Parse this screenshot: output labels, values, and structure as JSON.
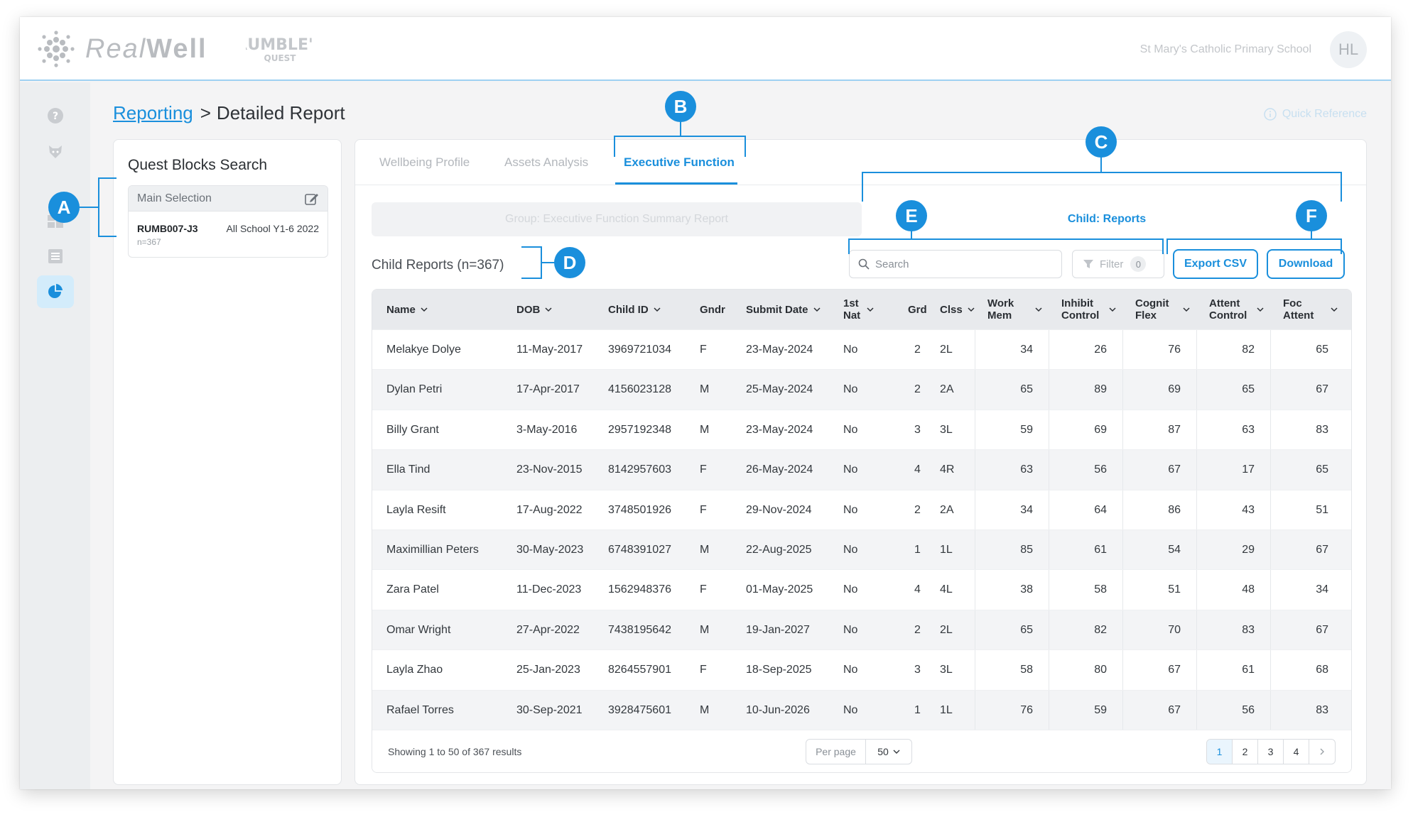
{
  "header": {
    "logo_real": "Real",
    "logo_well": "Well",
    "school": "St Mary's Catholic Primary School",
    "avatar_initials": "HL"
  },
  "breadcrumb": {
    "parent": "Reporting",
    "separator": ">",
    "current": "Detailed Report"
  },
  "quick_reference": "Quick Reference",
  "left_panel": {
    "title": "Quest Blocks Search",
    "selection_header": "Main Selection",
    "code": "RUMB007-J3",
    "scope": "All School Y1-6 2022",
    "count": "n=367"
  },
  "tabs": [
    "Wellbeing Profile",
    "Assets Analysis",
    "Executive Function"
  ],
  "segments": {
    "group": "Group: Executive Function Summary Report",
    "child": "Child: Reports"
  },
  "list_title": "Child Reports (n=367)",
  "search": {
    "placeholder": "Search"
  },
  "filter": {
    "label": "Filter",
    "count": "0"
  },
  "buttons": {
    "export": "Export CSV",
    "download": "Download"
  },
  "table": {
    "columns": [
      "Name",
      "DOB",
      "Child ID",
      "Gndr",
      "Submit Date",
      "1st Nat",
      "Grd",
      "Clss",
      "Work Mem",
      "Inhibit Control",
      "Cognit Flex",
      "Attent Control",
      "Foc Attent"
    ],
    "rows": [
      [
        "Melakye Dolye",
        "11-May-2017",
        "3969721034",
        "F",
        "23-May-2024",
        "No",
        "2",
        "2L",
        "34",
        "26",
        "76",
        "82",
        "65"
      ],
      [
        "Dylan Petri",
        "17-Apr-2017",
        "4156023128",
        "M",
        "25-May-2024",
        "No",
        "2",
        "2A",
        "65",
        "89",
        "69",
        "65",
        "67"
      ],
      [
        "Billy Grant",
        "3-May-2016",
        "2957192348",
        "M",
        "23-May-2024",
        "No",
        "3",
        "3L",
        "59",
        "69",
        "87",
        "63",
        "83"
      ],
      [
        "Ella Tind",
        "23-Nov-2015",
        "8142957603",
        "F",
        "26-May-2024",
        "No",
        "4",
        "4R",
        "63",
        "56",
        "67",
        "17",
        "65"
      ],
      [
        "Layla Resift",
        "17-Aug-2022",
        "3748501926",
        "F",
        "29-Nov-2024",
        "No",
        "2",
        "2A",
        "34",
        "64",
        "86",
        "43",
        "51"
      ],
      [
        "Maximillian Peters",
        "30-May-2023",
        "6748391027",
        "M",
        "22-Aug-2025",
        "No",
        "1",
        "1L",
        "85",
        "61",
        "54",
        "29",
        "67"
      ],
      [
        "Zara Patel",
        "11-Dec-2023",
        "1562948376",
        "F",
        "01-May-2025",
        "No",
        "4",
        "4L",
        "38",
        "58",
        "51",
        "48",
        "34"
      ],
      [
        "Omar Wright",
        "27-Apr-2022",
        "7438195642",
        "M",
        "19-Jan-2027",
        "No",
        "2",
        "2L",
        "65",
        "82",
        "70",
        "83",
        "67"
      ],
      [
        "Layla Zhao",
        "25-Jan-2023",
        "8264557901",
        "F",
        "18-Sep-2025",
        "No",
        "3",
        "3L",
        "58",
        "80",
        "67",
        "61",
        "68"
      ],
      [
        "Rafael Torres",
        "30-Sep-2021",
        "3928475601",
        "M",
        "10-Jun-2026",
        "No",
        "1",
        "1L",
        "76",
        "59",
        "67",
        "56",
        "83"
      ]
    ]
  },
  "footer": {
    "showing": "Showing 1 to 50 of 367 results",
    "per_page_label": "Per page",
    "per_page_value": "50",
    "pages": [
      "1",
      "2",
      "3",
      "4"
    ],
    "current_page": "1"
  },
  "callouts": [
    "A",
    "B",
    "C",
    "D",
    "E",
    "F"
  ],
  "colors": {
    "accent": "#1a8fdc",
    "rail_active": "#d3ecfb",
    "header_bg": "#e8eaed"
  }
}
